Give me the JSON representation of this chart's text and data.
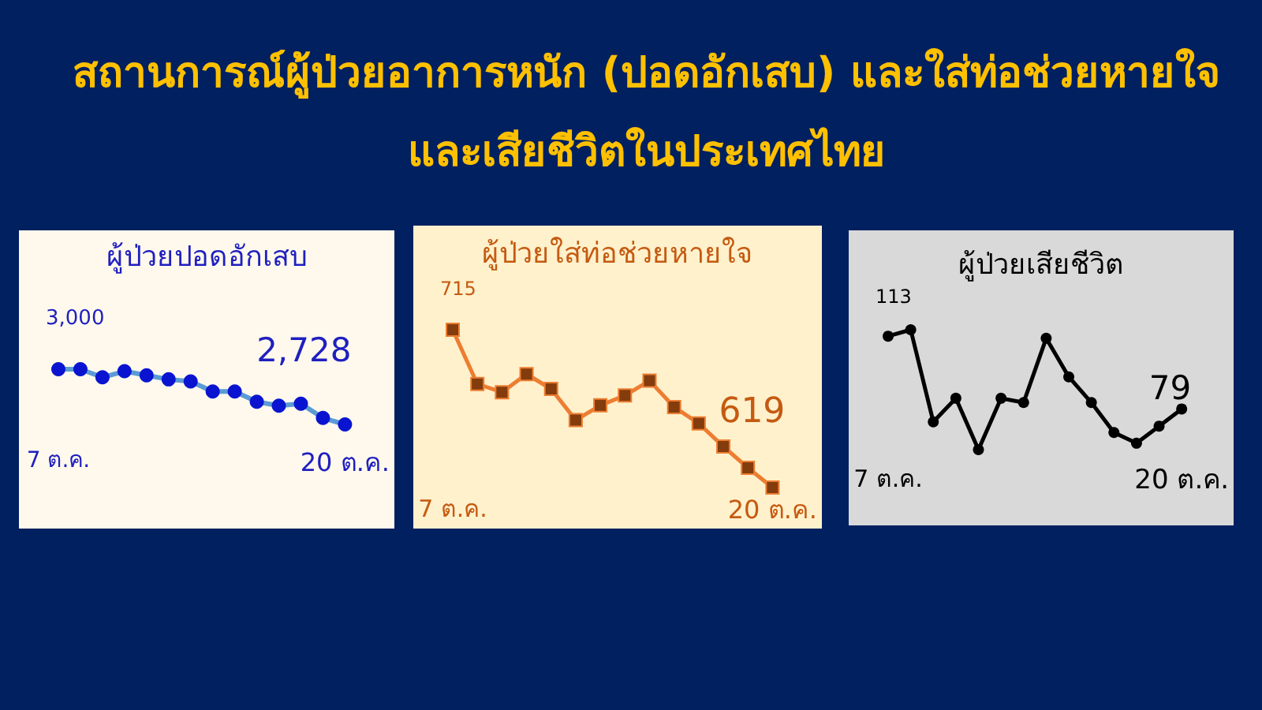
{
  "chart_data": [
    {
      "type": "other",
      "title": "สถานการณ์ผู้ป่วยอาการหนัก (ปอดอักเสบ) และใส่ท่อช่วยหายใจ\nและเสียชีวิตในประเทศไทย"
    },
    {
      "type": "line",
      "title": "ผู้ป่วยปอดอักเสบ",
      "categories": [
        "7 ต.ค.",
        null,
        null,
        null,
        null,
        null,
        null,
        null,
        null,
        null,
        null,
        null,
        null,
        "20 ต.ค."
      ],
      "values": [
        3000,
        3000,
        2960,
        2990,
        2970,
        2950,
        2940,
        2890,
        2890,
        2840,
        2820,
        2830,
        2760,
        2728
      ],
      "value_labels": [
        "3,000",
        null,
        null,
        null,
        null,
        null,
        null,
        null,
        null,
        null,
        null,
        null,
        null,
        "2,728"
      ],
      "color": "#5b9bd5",
      "colors": [
        "#0a14d0",
        "#0a14d0",
        "#0a14d0",
        "#0a14d0",
        "#0a14d0",
        "#0a14d0",
        "#0a14d0",
        "#0a14d0",
        "#0a14d0",
        "#0a14d0",
        "#0a14d0",
        "#0a14d0",
        "#0a14d0",
        "#0a14d0"
      ],
      "marker": "circle"
    },
    {
      "type": "line",
      "title": "ผู้ป่วยใส่ท่อช่วยหายใจ",
      "categories": [
        "7 ต.ค.",
        null,
        null,
        null,
        null,
        null,
        null,
        null,
        null,
        null,
        null,
        null,
        null,
        "20 ต.ค."
      ],
      "values": [
        715,
        682,
        677,
        688,
        679,
        660,
        669,
        675,
        684,
        668,
        658,
        644,
        631,
        619
      ],
      "value_labels": [
        "715",
        null,
        null,
        null,
        null,
        null,
        null,
        null,
        null,
        null,
        null,
        null,
        null,
        "619"
      ],
      "color": "#ed7d31",
      "colors": [
        "#843c0c",
        "#843c0c",
        "#843c0c",
        "#843c0c",
        "#843c0c",
        "#843c0c",
        "#843c0c",
        "#843c0c",
        "#843c0c",
        "#843c0c",
        "#843c0c",
        "#843c0c",
        "#843c0c",
        "#843c0c"
      ],
      "marker": "square"
    },
    {
      "type": "line",
      "title": "ผู้ป่วยเสียชีวิต",
      "categories": [
        "7 ต.ค.",
        null,
        null,
        null,
        null,
        null,
        null,
        null,
        null,
        null,
        null,
        null,
        null,
        "20 ต.ค."
      ],
      "values": [
        113,
        116,
        73,
        84,
        60,
        84,
        82,
        112,
        94,
        82,
        68,
        63,
        71,
        79
      ],
      "value_labels": [
        "113",
        null,
        null,
        null,
        null,
        null,
        null,
        null,
        null,
        null,
        null,
        null,
        null,
        "79"
      ],
      "color": "#000000",
      "marker": "circle"
    }
  ]
}
